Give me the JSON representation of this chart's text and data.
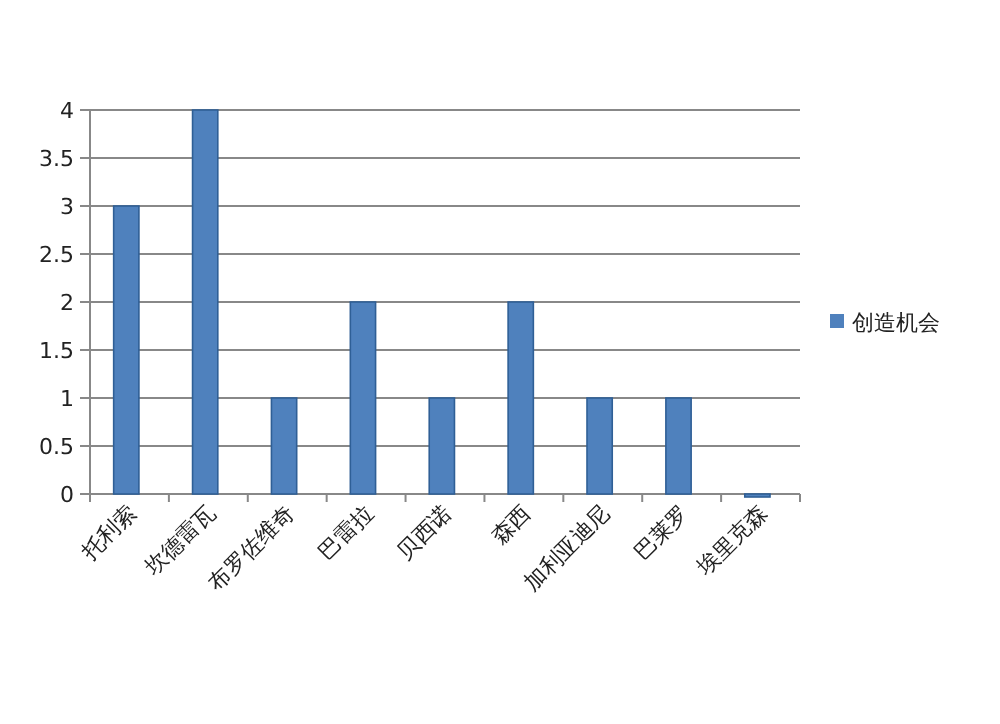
{
  "chart_data": {
    "type": "bar",
    "categories": [
      "托利索",
      "坎德雷瓦",
      "布罗佐维奇",
      "巴雷拉",
      "贝西诺",
      "森西",
      "加利亚迪尼",
      "巴莱罗",
      "埃里克森"
    ],
    "series": [
      {
        "name": "创造机会",
        "color": "#4f81bd",
        "values": [
          3,
          4,
          1,
          2,
          1,
          2,
          1,
          1,
          0
        ]
      }
    ],
    "ylim": [
      0,
      4
    ],
    "yticks": [
      0,
      0.5,
      1,
      1.5,
      2,
      2.5,
      3,
      3.5,
      4
    ],
    "grid": "y",
    "legend": "right"
  }
}
